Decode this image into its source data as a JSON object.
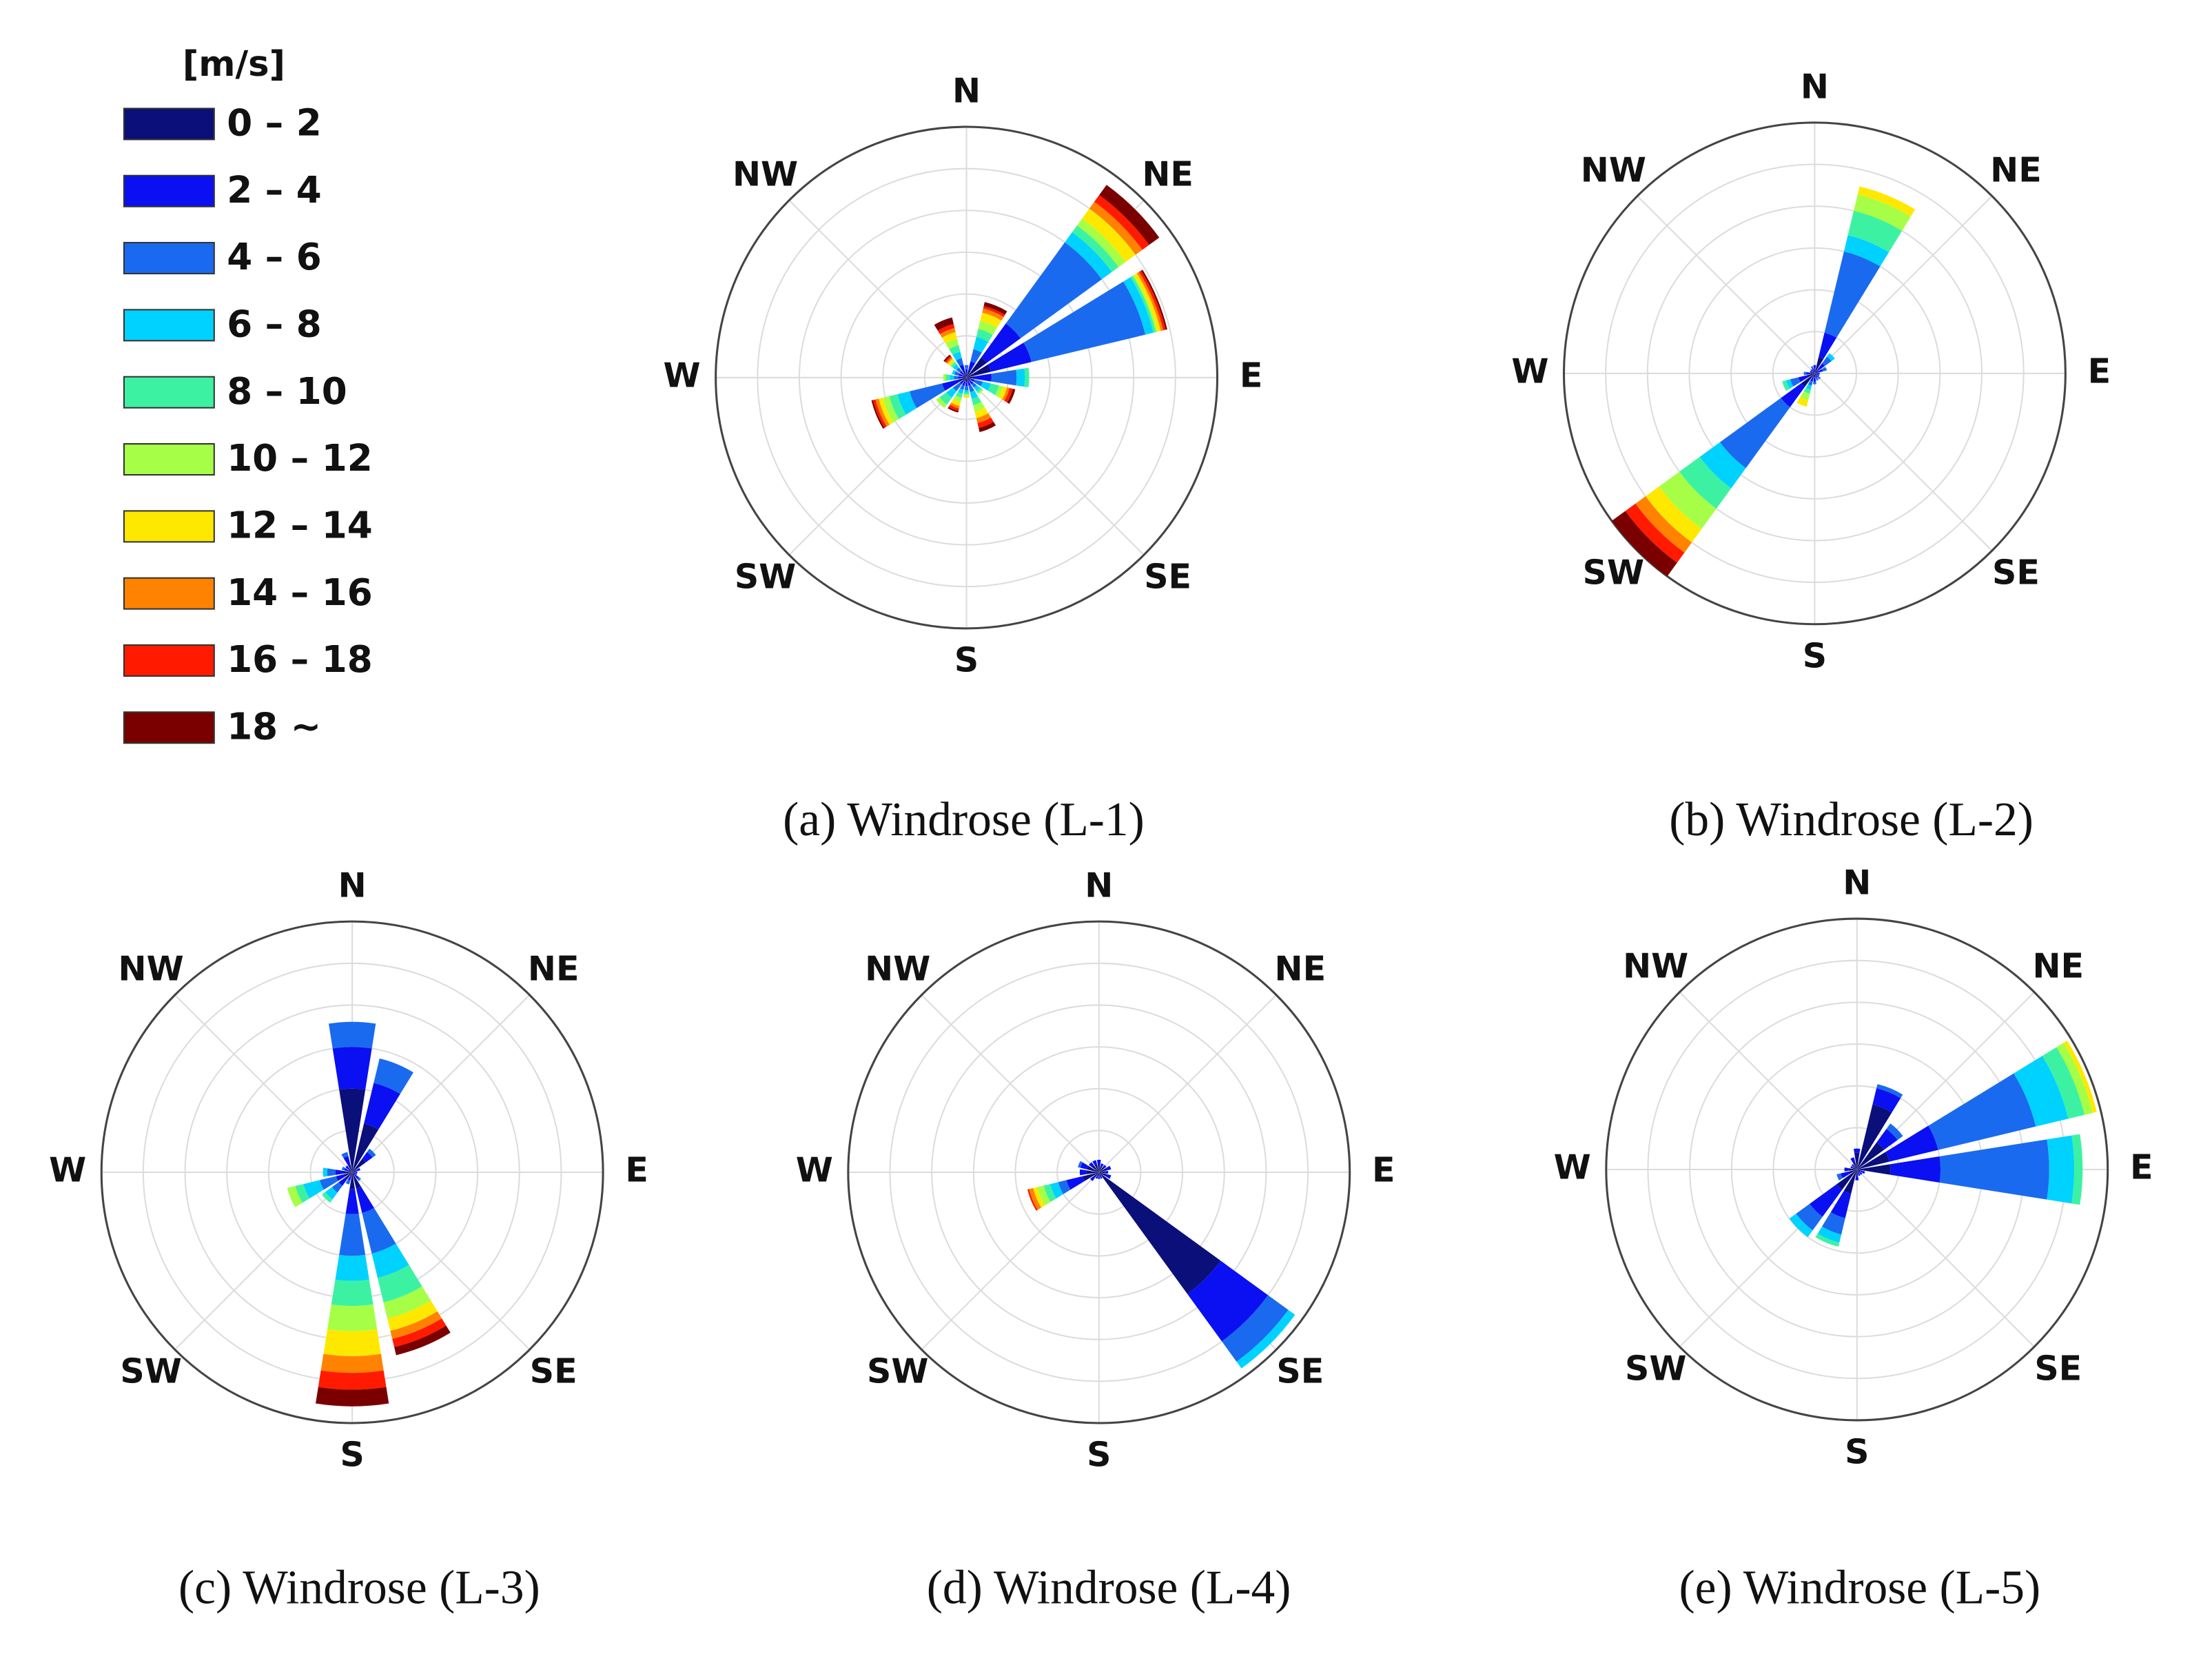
{
  "legend": {
    "title": "[m/s]",
    "items": [
      {
        "name": "0 – 2",
        "color": "#0b0f7a"
      },
      {
        "name": "2 – 4",
        "color": "#0a10f2"
      },
      {
        "name": "4 – 6",
        "color": "#1a6af0"
      },
      {
        "name": "6 – 8",
        "color": "#00d2ff"
      },
      {
        "name": "8 – 10",
        "color": "#3cf2a2"
      },
      {
        "name": "10 – 12",
        "color": "#a6ff46"
      },
      {
        "name": "12 – 14",
        "color": "#ffe800"
      },
      {
        "name": "14 – 16",
        "color": "#ff8200"
      },
      {
        "name": "16 – 18",
        "color": "#ff1a00"
      },
      {
        "name": "18 ~",
        "color": "#7a0000"
      }
    ]
  },
  "chart_data": [
    {
      "type": "windrose",
      "title": "(a) Windrose (L-1)",
      "directions": [
        0,
        22.5,
        45,
        67.5,
        90,
        112.5,
        135,
        157.5,
        180,
        202.5,
        225,
        247.5,
        270,
        292.5,
        315,
        337.5
      ],
      "values": [
        [
          0.5,
          0.5,
          0.5,
          0,
          0,
          0,
          0,
          0,
          0,
          0
        ],
        [
          1,
          1,
          1.5,
          1.5,
          1,
          1,
          1,
          0.5,
          0.3,
          0.5
        ],
        [
          3,
          5,
          12,
          1.5,
          1,
          1,
          1.5,
          1,
          1,
          1.5
        ],
        [
          3,
          5,
          14,
          1,
          0.3,
          0.2,
          0.4,
          0.3,
          0.3,
          0.2
        ],
        [
          1,
          2,
          3,
          1,
          0.5,
          0,
          0,
          0,
          0,
          0
        ],
        [
          0.5,
          0.5,
          1,
          1,
          1,
          0.5,
          0.5,
          0.3,
          0.4,
          0.3
        ],
        [
          0.5,
          0.5,
          0.5,
          0.5,
          0.3,
          0.2,
          0,
          0,
          0,
          0
        ],
        [
          0.5,
          0.5,
          0.8,
          0.8,
          0.8,
          0.8,
          0.8,
          0.6,
          0.6,
          0.5
        ],
        [
          0.5,
          0.5,
          0.5,
          0.3,
          0.2,
          0.2,
          0.2,
          0,
          0,
          0
        ],
        [
          0.5,
          0.5,
          0.5,
          0.5,
          0.5,
          0.5,
          0.5,
          0.3,
          0.3,
          0.2
        ],
        [
          0.5,
          0.5,
          1,
          1,
          1,
          0.5,
          0,
          0,
          0,
          0
        ],
        [
          1,
          2,
          4,
          1.5,
          1,
          0.8,
          0.5,
          0.4,
          0.3,
          0.2
        ],
        [
          0.5,
          0.5,
          0.5,
          0.5,
          0.5,
          0.3,
          0,
          0,
          0,
          0
        ],
        [
          0.5,
          0.5,
          0.5,
          0.3,
          0,
          0,
          0,
          0,
          0,
          0
        ],
        [
          0.5,
          0.5,
          0.5,
          0.5,
          0.3,
          0.2,
          0.3,
          0.2,
          0.2,
          0.2
        ],
        [
          0.8,
          0.8,
          0.8,
          0.8,
          0.8,
          0.8,
          0.8,
          0.5,
          0.5,
          0.8
        ]
      ],
      "rlim": [
        0,
        30
      ],
      "rticks": [
        5,
        10,
        15,
        20,
        25
      ],
      "thetaticks": [
        {
          "value": 0,
          "label": "N"
        },
        {
          "value": 45,
          "label": "NE"
        },
        {
          "value": 90,
          "label": "E"
        },
        {
          "value": 135,
          "label": "SE"
        },
        {
          "value": 180,
          "label": "S"
        },
        {
          "value": 225,
          "label": "SW"
        },
        {
          "value": 270,
          "label": "W"
        },
        {
          "value": 315,
          "label": "NW"
        }
      ]
    },
    {
      "type": "windrose",
      "title": "(b) Windrose (L-2)",
      "directions": [
        0,
        22.5,
        45,
        67.5,
        90,
        112.5,
        135,
        157.5,
        180,
        202.5,
        225,
        247.5,
        270,
        292.5,
        315,
        337.5
      ],
      "values": [
        [
          0.5,
          0.5,
          0,
          0,
          0,
          0,
          0,
          0,
          0,
          0
        ],
        [
          2,
          3,
          10,
          2,
          3,
          2,
          1,
          0,
          0,
          0
        ],
        [
          0.5,
          1,
          1,
          0.5,
          0,
          0,
          0,
          0,
          0,
          0
        ],
        [
          0.5,
          0.5,
          0.5,
          0,
          0,
          0,
          0,
          0,
          0,
          0
        ],
        [
          0.3,
          0.3,
          0,
          0,
          0,
          0,
          0,
          0,
          0,
          0
        ],
        [
          0.3,
          0.3,
          0,
          0,
          0,
          0,
          0,
          0,
          0,
          0
        ],
        [
          0.3,
          0.3,
          0.3,
          0,
          0,
          0,
          0,
          0,
          0,
          0
        ],
        [
          0.3,
          0.3,
          0.3,
          0,
          0,
          0,
          0,
          0,
          0,
          0
        ],
        [
          0.5,
          0.5,
          0.3,
          0,
          0,
          0,
          0,
          0,
          0,
          0
        ],
        [
          0.5,
          0.5,
          0.5,
          0.5,
          0.5,
          0.8,
          0.8,
          0,
          0,
          0
        ],
        [
          2,
          3,
          9,
          3,
          3,
          3,
          2,
          1.5,
          1.5,
          2
        ],
        [
          1,
          1,
          1,
          0.5,
          0.5,
          0,
          0,
          0,
          0,
          0
        ],
        [
          0.5,
          0.5,
          0.3,
          0,
          0,
          0,
          0,
          0,
          0,
          0
        ],
        [
          0.3,
          0.3,
          0,
          0,
          0,
          0,
          0,
          0,
          0,
          0
        ],
        [
          0.3,
          0.3,
          0,
          0,
          0,
          0,
          0,
          0,
          0,
          0
        ],
        [
          0.3,
          0.3,
          0.3,
          0,
          0,
          0,
          0,
          0,
          0,
          0
        ]
      ],
      "rlim": [
        0,
        30
      ],
      "rticks": [
        5,
        10,
        15,
        20,
        25
      ],
      "thetaticks": [
        {
          "value": 0,
          "label": "N"
        },
        {
          "value": 45,
          "label": "NE"
        },
        {
          "value": 90,
          "label": "E"
        },
        {
          "value": 135,
          "label": "SE"
        },
        {
          "value": 180,
          "label": "S"
        },
        {
          "value": 225,
          "label": "SW"
        },
        {
          "value": 270,
          "label": "W"
        },
        {
          "value": 315,
          "label": "NW"
        }
      ]
    },
    {
      "type": "windrose",
      "title": "(c) Windrose (L-3)",
      "directions": [
        0,
        22.5,
        45,
        67.5,
        90,
        112.5,
        135,
        157.5,
        180,
        202.5,
        225,
        247.5,
        270,
        292.5,
        315,
        337.5
      ],
      "values": [
        [
          10,
          5,
          3,
          0,
          0,
          0,
          0,
          0,
          0,
          0
        ],
        [
          6,
          5,
          3,
          0,
          0,
          0,
          0,
          0,
          0,
          0
        ],
        [
          2,
          1,
          0.5,
          0,
          0,
          0,
          0,
          0,
          0,
          0
        ],
        [
          0.5,
          0.5,
          0,
          0,
          0,
          0,
          0,
          0,
          0,
          0
        ],
        [
          0.3,
          0.3,
          0,
          0,
          0,
          0,
          0,
          0,
          0,
          0
        ],
        [
          0.3,
          0.3,
          0,
          0,
          0,
          0,
          0,
          0,
          0,
          0
        ],
        [
          0.5,
          0.5,
          0.3,
          0,
          0,
          0,
          0,
          0,
          0,
          0
        ],
        [
          2,
          3,
          5,
          3,
          3,
          2,
          1.5,
          1,
          1,
          1
        ],
        [
          2,
          3,
          5,
          3,
          3,
          3,
          3,
          2,
          2,
          2
        ],
        [
          0.5,
          0.5,
          0.5,
          0,
          0,
          0,
          0,
          0,
          0,
          0
        ],
        [
          1,
          1,
          1,
          1,
          0.5,
          0,
          0,
          0,
          0,
          0
        ],
        [
          1,
          1,
          2,
          2,
          1,
          1,
          0,
          0,
          0,
          0
        ],
        [
          1,
          1,
          1,
          0.5,
          0,
          0,
          0,
          0,
          0,
          0
        ],
        [
          0.5,
          0.5,
          0.3,
          0,
          0,
          0,
          0,
          0,
          0,
          0
        ],
        [
          0.5,
          0.5,
          0,
          0,
          0,
          0,
          0,
          0,
          0,
          0
        ],
        [
          1,
          1,
          0.5,
          0,
          0,
          0,
          0,
          0,
          0,
          0
        ]
      ],
      "rlim": [
        0,
        30
      ],
      "rticks": [
        5,
        10,
        15,
        20,
        25
      ],
      "thetaticks": [
        {
          "value": 0,
          "label": "N"
        },
        {
          "value": 45,
          "label": "NE"
        },
        {
          "value": 90,
          "label": "E"
        },
        {
          "value": 135,
          "label": "SE"
        },
        {
          "value": 180,
          "label": "S"
        },
        {
          "value": 225,
          "label": "SW"
        },
        {
          "value": 270,
          "label": "W"
        },
        {
          "value": 315,
          "label": "NW"
        }
      ]
    },
    {
      "type": "windrose",
      "title": "(d) Windrose (L-4)",
      "directions": [
        0,
        22.5,
        45,
        67.5,
        90,
        112.5,
        135,
        157.5,
        180,
        202.5,
        225,
        247.5,
        270,
        292.5,
        315,
        337.5
      ],
      "values": [
        [
          1,
          0.5,
          0,
          0,
          0,
          0,
          0,
          0,
          0,
          0
        ],
        [
          0.8,
          0.3,
          0,
          0,
          0,
          0,
          0,
          0,
          0,
          0
        ],
        [
          0.8,
          0.3,
          0,
          0,
          0,
          0,
          0,
          0,
          0,
          0
        ],
        [
          1,
          0.5,
          0,
          0,
          0,
          0,
          0,
          0,
          0,
          0
        ],
        [
          0.8,
          0.3,
          0,
          0,
          0,
          0,
          0,
          0,
          0,
          0
        ],
        [
          1,
          0.5,
          0,
          0,
          0,
          0,
          0,
          0,
          0,
          0
        ],
        [
          18,
          7,
          3,
          1,
          0,
          0,
          0,
          0,
          0,
          0
        ],
        [
          0.5,
          0.3,
          0,
          0,
          0,
          0,
          0,
          0,
          0,
          0
        ],
        [
          0.5,
          0.3,
          0,
          0,
          0,
          0,
          0,
          0,
          0,
          0
        ],
        [
          0.5,
          0.3,
          0,
          0,
          0,
          0,
          0,
          0,
          0,
          0
        ],
        [
          0.8,
          0.5,
          0,
          0,
          0,
          0,
          0,
          0,
          0,
          0
        ],
        [
          2,
          2,
          1,
          1,
          0.8,
          0.8,
          0.5,
          0.5,
          0.2,
          0
        ],
        [
          1.5,
          0.8,
          0,
          0,
          0,
          0,
          0,
          0,
          0,
          0
        ],
        [
          1.5,
          0.8,
          0.3,
          0,
          0,
          0,
          0,
          0,
          0,
          0
        ],
        [
          1,
          0.5,
          0,
          0,
          0,
          0,
          0,
          0,
          0,
          0
        ],
        [
          1,
          0.5,
          0,
          0,
          0,
          0,
          0,
          0,
          0,
          0
        ]
      ],
      "rlim": [
        0,
        30
      ],
      "rticks": [
        5,
        10,
        15,
        20,
        25
      ],
      "thetaticks": [
        {
          "value": 0,
          "label": "N"
        },
        {
          "value": 45,
          "label": "NE"
        },
        {
          "value": 90,
          "label": "E"
        },
        {
          "value": 135,
          "label": "SE"
        },
        {
          "value": 180,
          "label": "S"
        },
        {
          "value": 225,
          "label": "SW"
        },
        {
          "value": 270,
          "label": "W"
        },
        {
          "value": 315,
          "label": "NW"
        }
      ]
    },
    {
      "type": "windrose",
      "title": "(e) Windrose (L-5)",
      "directions": [
        0,
        22.5,
        45,
        67.5,
        90,
        112.5,
        135,
        157.5,
        180,
        202.5,
        225,
        247.5,
        270,
        292.5,
        315,
        337.5
      ],
      "values": [
        [
          2,
          0.5,
          0,
          0,
          0,
          0,
          0,
          0,
          0,
          0
        ],
        [
          8,
          2,
          0.5,
          0,
          0,
          0,
          0,
          0,
          0,
          0
        ],
        [
          4,
          2,
          0.8,
          0,
          0,
          0,
          0,
          0,
          0,
          0
        ],
        [
          4,
          6,
          12,
          4,
          2,
          1,
          0.5,
          0,
          0,
          0
        ],
        [
          4,
          6,
          13,
          3,
          1,
          0,
          0,
          0,
          0,
          0
        ],
        [
          0.5,
          0.5,
          0,
          0,
          0,
          0,
          0,
          0,
          0,
          0
        ],
        [
          0.5,
          0.3,
          0,
          0,
          0,
          0,
          0,
          0,
          0,
          0
        ],
        [
          0.5,
          0.3,
          0,
          0,
          0,
          0,
          0,
          0,
          0,
          0
        ],
        [
          0.8,
          0.5,
          0,
          0,
          0,
          0,
          0,
          0,
          0,
          0
        ],
        [
          3,
          3,
          2,
          1,
          0.5,
          0,
          0,
          0,
          0,
          0
        ],
        [
          3,
          4,
          2,
          1,
          0,
          0,
          0,
          0,
          0,
          0
        ],
        [
          1,
          1,
          0.5,
          0,
          0,
          0,
          0,
          0,
          0,
          0
        ],
        [
          1,
          0.5,
          0,
          0,
          0,
          0,
          0,
          0,
          0,
          0
        ],
        [
          0.5,
          0.3,
          0,
          0,
          0,
          0,
          0,
          0,
          0,
          0
        ],
        [
          0.5,
          0.3,
          0,
          0,
          0,
          0,
          0,
          0,
          0,
          0
        ],
        [
          1,
          0.5,
          0,
          0,
          0,
          0,
          0,
          0,
          0,
          0
        ]
      ],
      "rlim": [
        0,
        30
      ],
      "rticks": [
        5,
        10,
        15,
        20,
        25
      ],
      "thetaticks": [
        {
          "value": 0,
          "label": "N"
        },
        {
          "value": 45,
          "label": "NE"
        },
        {
          "value": 90,
          "label": "E"
        },
        {
          "value": 135,
          "label": "SE"
        },
        {
          "value": 180,
          "label": "S"
        },
        {
          "value": 225,
          "label": "SW"
        },
        {
          "value": 270,
          "label": "W"
        },
        {
          "value": 315,
          "label": "NW"
        }
      ]
    }
  ]
}
